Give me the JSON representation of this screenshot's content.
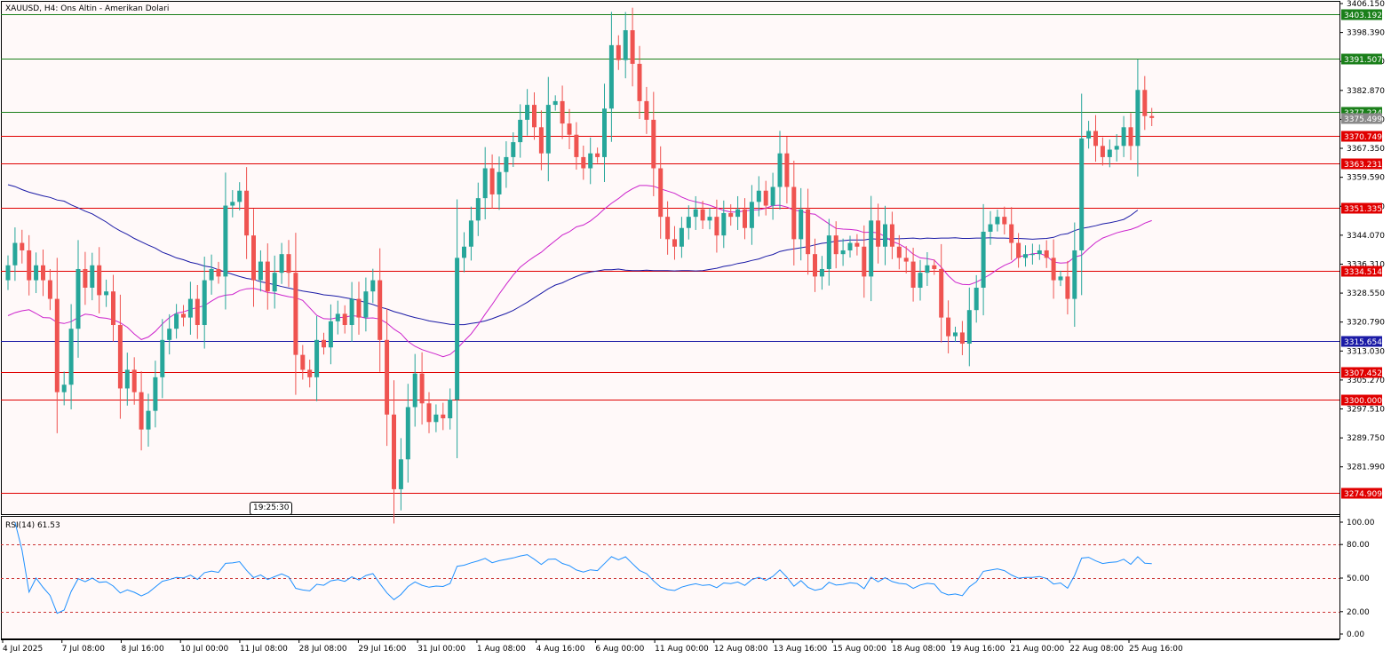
{
  "chart_title": "XAUUSD, H4:  Ons Altin - Amerikan Dolari",
  "rsi_label": "RSI(14) 61.53",
  "time_popup": "19:25",
  "time_popup_suffix": ":30",
  "colors": {
    "background": "#fff9f9",
    "bull": "#26a69a",
    "bear": "#ef5350",
    "ma_slow": "#1a1aa6",
    "ma_fast": "#cc22cc",
    "rsi_line": "#1e90ff",
    "support": "#1a7f1a",
    "resistance": "#e00000",
    "pivot": "#1a1aa6"
  },
  "chart_data": {
    "type": "candlestick",
    "symbol": "XAUUSD",
    "timeframe": "H4",
    "price_axis": {
      "range": [
        3275.5,
        3406.15
      ],
      "tick_labels": [
        "3406.150",
        "3398.390",
        "3390.630",
        "3382.870",
        "3375.110",
        "3367.350",
        "3359.590",
        "3351.830",
        "3344.070",
        "3336.310",
        "3328.550",
        "3320.790",
        "3313.030",
        "3305.270",
        "3297.510",
        "3289.750",
        "3281.990"
      ]
    },
    "time_axis": {
      "labels": [
        "4 Jul 2025",
        "7 Jul 08:00",
        "8 Jul 16:00",
        "10 Jul 00:00",
        "11 Jul 08:00",
        "28 Jul 08:00",
        "29 Jul 16:00",
        "31 Jul 00:00",
        "1 Aug 08:00",
        "4 Aug 16:00",
        "6 Aug 00:00",
        "11 Aug 00:00",
        "12 Aug 08:00",
        "13 Aug 16:00",
        "15 Aug 00:00",
        "18 Aug 08:00",
        "19 Aug 16:00",
        "21 Aug 00:00",
        "22 Aug 08:00",
        "25 Aug 16:00"
      ]
    },
    "levels": [
      {
        "price": "3403.192",
        "kind": "support"
      },
      {
        "price": "3391.507",
        "kind": "support"
      },
      {
        "price": "3377.224",
        "kind": "support"
      },
      {
        "price": "3375.499",
        "kind": "current"
      },
      {
        "price": "3370.749",
        "kind": "resistance"
      },
      {
        "price": "3363.231",
        "kind": "resistance"
      },
      {
        "price": "3351.335",
        "kind": "resistance"
      },
      {
        "price": "3334.514",
        "kind": "resistance"
      },
      {
        "price": "3315.654",
        "kind": "pivot"
      },
      {
        "price": "3307.452",
        "kind": "resistance"
      },
      {
        "price": "3300.000",
        "kind": "resistance"
      },
      {
        "price": "3274.909",
        "kind": "resistance"
      }
    ],
    "close": [
      3336,
      3342,
      3340,
      3332,
      3336,
      3332,
      3327,
      3302,
      3304,
      3319,
      3335,
      3330,
      3336,
      3328,
      3329,
      3320,
      3303,
      3308,
      3302,
      3292,
      3297,
      3306,
      3316,
      3319,
      3323,
      3322,
      3327,
      3320,
      3332,
      3335,
      3333,
      3352,
      3353,
      3356,
      3344,
      3332,
      3337,
      3329,
      3334,
      3339,
      3334,
      3312,
      3308,
      3306,
      3316,
      3314,
      3321,
      3323,
      3320,
      3327,
      3322,
      3329,
      3332,
      3316,
      3296,
      3276,
      3284,
      3298,
      3307,
      3299,
      3294,
      3296,
      3295,
      3300,
      3338,
      3341,
      3348,
      3354,
      3362,
      3355,
      3361,
      3365,
      3369,
      3375,
      3379,
      3373,
      3366,
      3379,
      3380,
      3374,
      3371,
      3365,
      3362,
      3366,
      3365,
      3378,
      3395,
      3391,
      3399,
      3390,
      3380,
      3375,
      3362,
      3349,
      3343,
      3341,
      3346,
      3349,
      3351,
      3348,
      3349,
      3344,
      3350,
      3349,
      3351,
      3346,
      3353,
      3356,
      3352,
      3357,
      3366,
      3357,
      3343,
      3351,
      3339,
      3333,
      3335,
      3344,
      3339,
      3340,
      3342,
      3341,
      3333,
      3348,
      3341,
      3347,
      3341,
      3338,
      3337,
      3330,
      3334,
      3336,
      3335,
      3322,
      3317,
      3318,
      3315,
      3324,
      3330,
      3345,
      3347,
      3349,
      3347,
      3342,
      3338,
      3339,
      3339,
      3340,
      3338,
      3332,
      3333,
      3327,
      3340,
      3370,
      3372,
      3368,
      3365,
      3367,
      3368,
      3373,
      3368,
      3383,
      3376,
      3375.49
    ],
    "ma_fast": [
      3322.5,
      3323.3,
      3323.8,
      3324.1,
      3323.1,
      3322.0,
      3321.9,
      3320.7,
      3320.4,
      3320.9,
      3322.0,
      3322.9,
      3322.7,
      3322.0,
      3321.8,
      3321.4,
      3320.6,
      3319.4,
      3317.6,
      3316.1,
      3316.8,
      3318.3,
      3320.3,
      3322.0,
      3323.2,
      3323.5,
      3324.2,
      3324.7,
      3325.2,
      3326.4,
      3327.5,
      3328.0,
      3328.2,
      3329.2,
      3329.7,
      3329.8,
      3329.4,
      3328.7,
      3328.5,
      3328.0,
      3327.6,
      3327.3,
      3326.6,
      3324.6,
      3322.6,
      3321.7,
      3321.6,
      3322.0,
      3322.1,
      3322.5,
      3322.3,
      3321.8,
      3321.9,
      3321.6,
      3320.5,
      3318.9,
      3317.7,
      3315.6,
      3314.3,
      3313.4,
      3312.8,
      3312.2,
      3311.5,
      3312.1,
      3313.7,
      3315.7,
      3317.6,
      3320.1,
      3322.9,
      3325.5,
      3328.3,
      3330.9,
      3333.4,
      3335.5,
      3337.0,
      3338.3,
      3339.5,
      3341.1,
      3342.6,
      3344.1,
      3345.0,
      3346.3,
      3346.8,
      3347.9,
      3349.4,
      3351.1,
      3352.6,
      3353.9,
      3355.4,
      3356.5,
      3357.4,
      3357.4,
      3357.2,
      3356.5,
      3355.9,
      3355.3,
      3354.3,
      3353.5,
      3353.0,
      3352.6,
      3352.1,
      3351.4,
      3350.7,
      3350.3,
      3350.3,
      3350.6,
      3350.8,
      3350.9,
      3351.3,
      3352.0,
      3352.1,
      3351.6,
      3350.8,
      3350.5,
      3349.9,
      3349.7,
      3348.4,
      3347.1,
      3345.9,
      3345.7,
      3345.6,
      3345.4,
      3344.8,
      3344.9,
      3344.7,
      3343.7,
      3342.4,
      3341.7,
      3340.6,
      3339.0,
      3338.0,
      3337.8,
      3337.4,
      3335.5,
      3333.2,
      3331.5,
      3330.9,
      3330.8,
      3331.5,
      3332.5,
      3333.6,
      3334.9,
      3336.0,
      3336.8,
      3338.3,
      3338.6,
      3339.1,
      3339.2,
      3338.5,
      3336.9,
      3336.6,
      3336.7,
      3338.2,
      3338.7,
      3340.5,
      3342.1,
      3343.3,
      3344.0,
      3344.7,
      3345.2,
      3345.6,
      3346.3,
      3347.3,
      3348.0
    ],
    "ma_slow": [
      3357.6,
      3357.1,
      3356.3,
      3355.6,
      3355.1,
      3354.6,
      3354.2,
      3353.5,
      3353.2,
      3352.2,
      3351.4,
      3350.5,
      3349.8,
      3348.7,
      3347.6,
      3346.3,
      3345.2,
      3344.3,
      3343.2,
      3342.3,
      3341.4,
      3340.6,
      3339.5,
      3338.8,
      3338.0,
      3337.5,
      3336.8,
      3336.4,
      3335.8,
      3335.5,
      3334.8,
      3334.2,
      3333.6,
      3333.0,
      3332.5,
      3332.2,
      3331.6,
      3331.2,
      3330.8,
      3330.3,
      3329.9,
      3329.5,
      3329.1,
      3328.8,
      3328.5,
      3328.1,
      3327.9,
      3327.7,
      3327.3,
      3327.0,
      3326.6,
      3326.0,
      3325.5,
      3324.8,
      3324.3,
      3323.6,
      3323.1,
      3322.5,
      3322.0,
      3321.6,
      3321.1,
      3320.8,
      3320.5,
      3320.2,
      3320.1,
      3320.1,
      3320.4,
      3320.7,
      3321.1,
      3321.7,
      3322.4,
      3323.1,
      3323.9,
      3325.0,
      3326.1,
      3327.3,
      3328.5,
      3329.7,
      3330.7,
      3331.3,
      3332.2,
      3333.0,
      3333.7,
      3334.2,
      3334.5,
      3334.8,
      3334.8,
      3335.0,
      3334.7,
      3334.6,
      3334.6,
      3334.7,
      3334.6,
      3334.6,
      3334.6,
      3334.5,
      3334.6,
      3334.6,
      3334.5,
      3334.6,
      3334.9,
      3335.2,
      3335.7,
      3336.0,
      3336.5,
      3336.8,
      3337.3,
      3337.7,
      3338.4,
      3338.9,
      3339.7,
      3340.1,
      3340.4,
      3340.7,
      3341.0,
      3341.5,
      3341.9,
      3342.1,
      3342.5,
      3342.6,
      3342.8,
      3342.8,
      3342.8,
      3343.1,
      3343.0,
      3343.0,
      3343.1,
      3343.1,
      3343.2,
      3343.3,
      3343.1,
      3343.3,
      3343.2,
      3343.3,
      3343.3,
      3343.4,
      3343.2,
      3343.2,
      3343.3,
      3343.3,
      3343.4,
      3343.3,
      3343.3,
      3343.2,
      3343.2,
      3343.1,
      3343.0,
      3343.1,
      3343.2,
      3343.5,
      3344.2,
      3344.5,
      3345.3,
      3345.9,
      3346.2,
      3346.6,
      3347.1,
      3347.4,
      3347.8,
      3348.3,
      3349.4,
      3350.8
    ],
    "rsi": {
      "levels": [
        "80.00",
        "50.00",
        "20.00"
      ],
      "axis_labels": [
        "100.00",
        "80.00",
        "50.00",
        "20.00",
        "0.00"
      ],
      "last": "61.53"
    }
  }
}
